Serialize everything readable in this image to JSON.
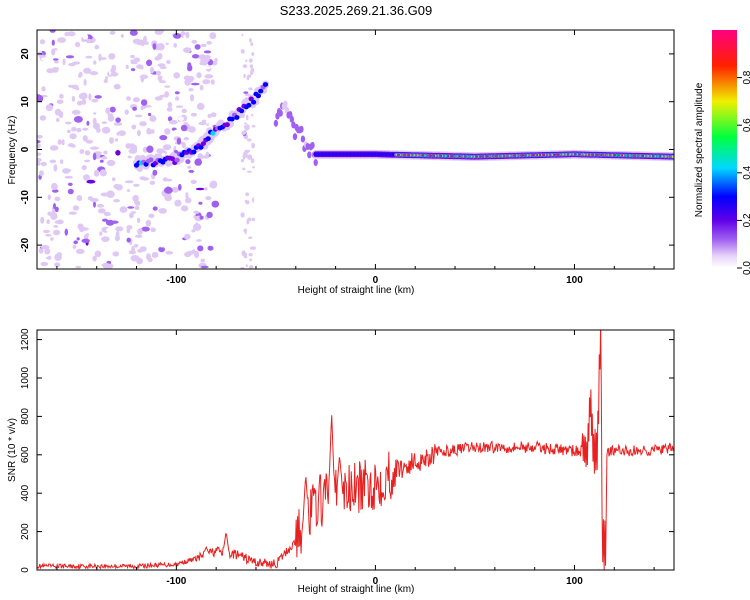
{
  "chart_data": [
    {
      "type": "heatmap",
      "title": "S233.2025.269.21.36.G09",
      "xlabel": "Height of straight line (km)",
      "ylabel": "Frequency (Hz)",
      "xlim": [
        -170,
        150
      ],
      "ylim": [
        -25,
        25
      ],
      "x_ticks": [
        -100,
        0,
        100
      ],
      "y_ticks": [
        -20,
        -10,
        0,
        10,
        20
      ],
      "colorbar": {
        "label": "Normalized spectral amplitude",
        "range": [
          0,
          1
        ],
        "ticks": [
          "0.0",
          "0.2",
          "0.4",
          "0.6",
          "0.8"
        ],
        "colors": [
          "#ffffff",
          "#e0c8f5",
          "#a060f0",
          "#7000e0",
          "#0000ff",
          "#00d8ff",
          "#00ff40",
          "#f0f000",
          "#ff2000",
          "#ff0080"
        ]
      },
      "trace": {
        "rising_segment": [
          [
            -120,
            -3
          ],
          [
            -100,
            -2
          ],
          [
            -90,
            0
          ],
          [
            -80,
            4
          ],
          [
            -70,
            7
          ],
          [
            -60,
            11
          ],
          [
            -55,
            13
          ]
        ],
        "secondary_segment": [
          [
            -50,
            6
          ],
          [
            -45,
            9
          ],
          [
            -40,
            4
          ],
          [
            -35,
            1
          ],
          [
            -30,
            -1
          ]
        ],
        "flat_segment": [
          [
            -30,
            -1
          ],
          [
            0,
            -1
          ],
          [
            50,
            -1.5
          ],
          [
            100,
            -1
          ],
          [
            150,
            -1.5
          ]
        ],
        "strongest_x_range": [
          10,
          150
        ]
      }
    },
    {
      "type": "line",
      "title": "",
      "xlabel": "Height of straight line (km)",
      "ylabel": "SNR (10 * v/v)",
      "xlim": [
        -170,
        150
      ],
      "ylim": [
        0,
        1250
      ],
      "x_ticks": [
        -100,
        0,
        100
      ],
      "y_ticks": [
        0,
        200,
        400,
        600,
        800,
        1000,
        1200
      ],
      "series": [
        {
          "name": "SNR",
          "color": "#e82020",
          "envelope": [
            [
              -170,
              20
            ],
            [
              -120,
              20
            ],
            [
              -100,
              30
            ],
            [
              -90,
              60
            ],
            [
              -80,
              100
            ],
            [
              -70,
              80
            ],
            [
              -60,
              40
            ],
            [
              -50,
              30
            ],
            [
              -40,
              150
            ],
            [
              -30,
              350
            ],
            [
              -20,
              400
            ],
            [
              -10,
              420
            ],
            [
              0,
              450
            ],
            [
              10,
              520
            ],
            [
              20,
              560
            ],
            [
              30,
              610
            ],
            [
              50,
              640
            ],
            [
              80,
              640
            ],
            [
              100,
              620
            ],
            [
              110,
              620
            ],
            [
              115,
              620
            ],
            [
              130,
              620
            ],
            [
              150,
              630
            ]
          ],
          "spikes": [
            [
              -85,
              120
            ],
            [
              -75,
              200
            ],
            [
              -35,
              500
            ],
            [
              -22,
              820
            ],
            [
              -18,
              600
            ],
            [
              108,
              900
            ],
            [
              113,
              1240
            ],
            [
              115,
              120
            ]
          ]
        }
      ]
    }
  ]
}
